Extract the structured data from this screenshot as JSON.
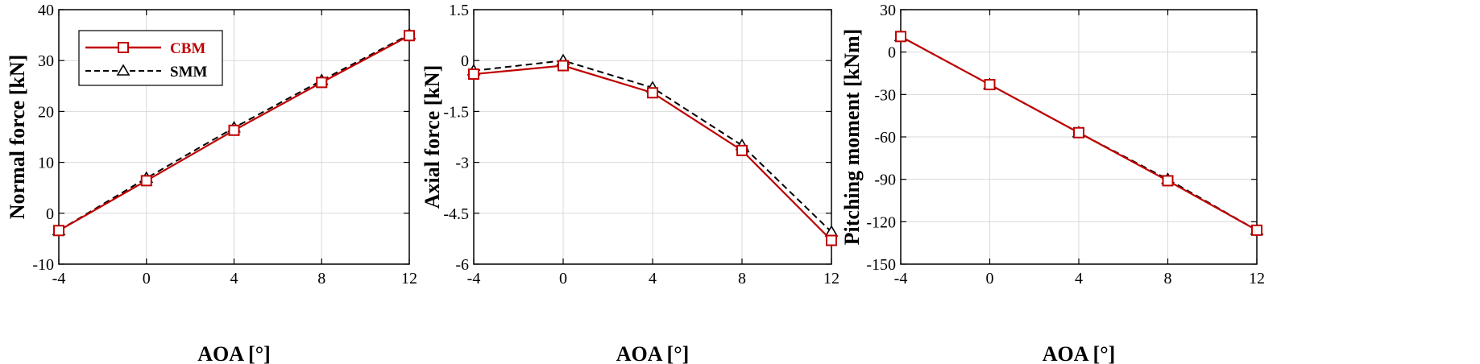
{
  "colors": {
    "cbm": "#c00000",
    "smm": "#000000",
    "grid": "#d9d9d9"
  },
  "legend": {
    "entries": [
      {
        "key": "cbm",
        "label": "CBM",
        "marker": "square",
        "dash": "solid"
      },
      {
        "key": "smm",
        "label": "SMM",
        "marker": "triangle",
        "dash": "dashed"
      }
    ]
  },
  "chart_data": [
    {
      "type": "line",
      "xlabel": "AOA [°]",
      "ylabel": "Normal force [kN]",
      "xlim": [
        -4,
        12
      ],
      "ylim": [
        -10,
        40
      ],
      "xticks": [
        -4,
        0,
        4,
        8,
        12
      ],
      "yticks": [
        -10,
        0,
        10,
        20,
        30,
        40
      ],
      "grid": true,
      "legend_position": "top-left",
      "x": [
        -4,
        0,
        4,
        8,
        12
      ],
      "series": [
        {
          "name": "CBM",
          "values": [
            -3.4,
            6.4,
            16.3,
            25.7,
            34.9
          ]
        },
        {
          "name": "SMM",
          "values": [
            -3.4,
            6.9,
            16.8,
            26.1,
            35.1
          ]
        }
      ]
    },
    {
      "type": "line",
      "xlabel": "AOA [°]",
      "ylabel": "Axial force [kN]",
      "xlim": [
        -4,
        12
      ],
      "ylim": [
        -6,
        1.5
      ],
      "xticks": [
        -4,
        0,
        4,
        8,
        12
      ],
      "yticks": [
        -6,
        -4.5,
        -3,
        -1.5,
        0,
        1.5
      ],
      "grid": true,
      "x": [
        -4,
        0,
        4,
        8,
        12
      ],
      "series": [
        {
          "name": "CBM",
          "values": [
            -0.4,
            -0.15,
            -0.95,
            -2.65,
            -5.3
          ]
        },
        {
          "name": "SMM",
          "values": [
            -0.3,
            0.0,
            -0.8,
            -2.5,
            -5.05
          ]
        }
      ]
    },
    {
      "type": "line",
      "xlabel": "AOA [°]",
      "ylabel": "Pitching moment [kNm]",
      "xlim": [
        -4,
        12
      ],
      "ylim": [
        -150,
        30
      ],
      "xticks": [
        -4,
        0,
        4,
        8,
        12
      ],
      "yticks": [
        -150,
        -120,
        -90,
        -60,
        -30,
        0,
        30
      ],
      "grid": true,
      "x": [
        -4,
        0,
        4,
        8,
        12
      ],
      "series": [
        {
          "name": "CBM",
          "values": [
            11,
            -23,
            -57,
            -91,
            -126
          ]
        },
        {
          "name": "SMM",
          "values": [
            11,
            -23,
            -57,
            -90,
            -126
          ]
        }
      ]
    }
  ]
}
